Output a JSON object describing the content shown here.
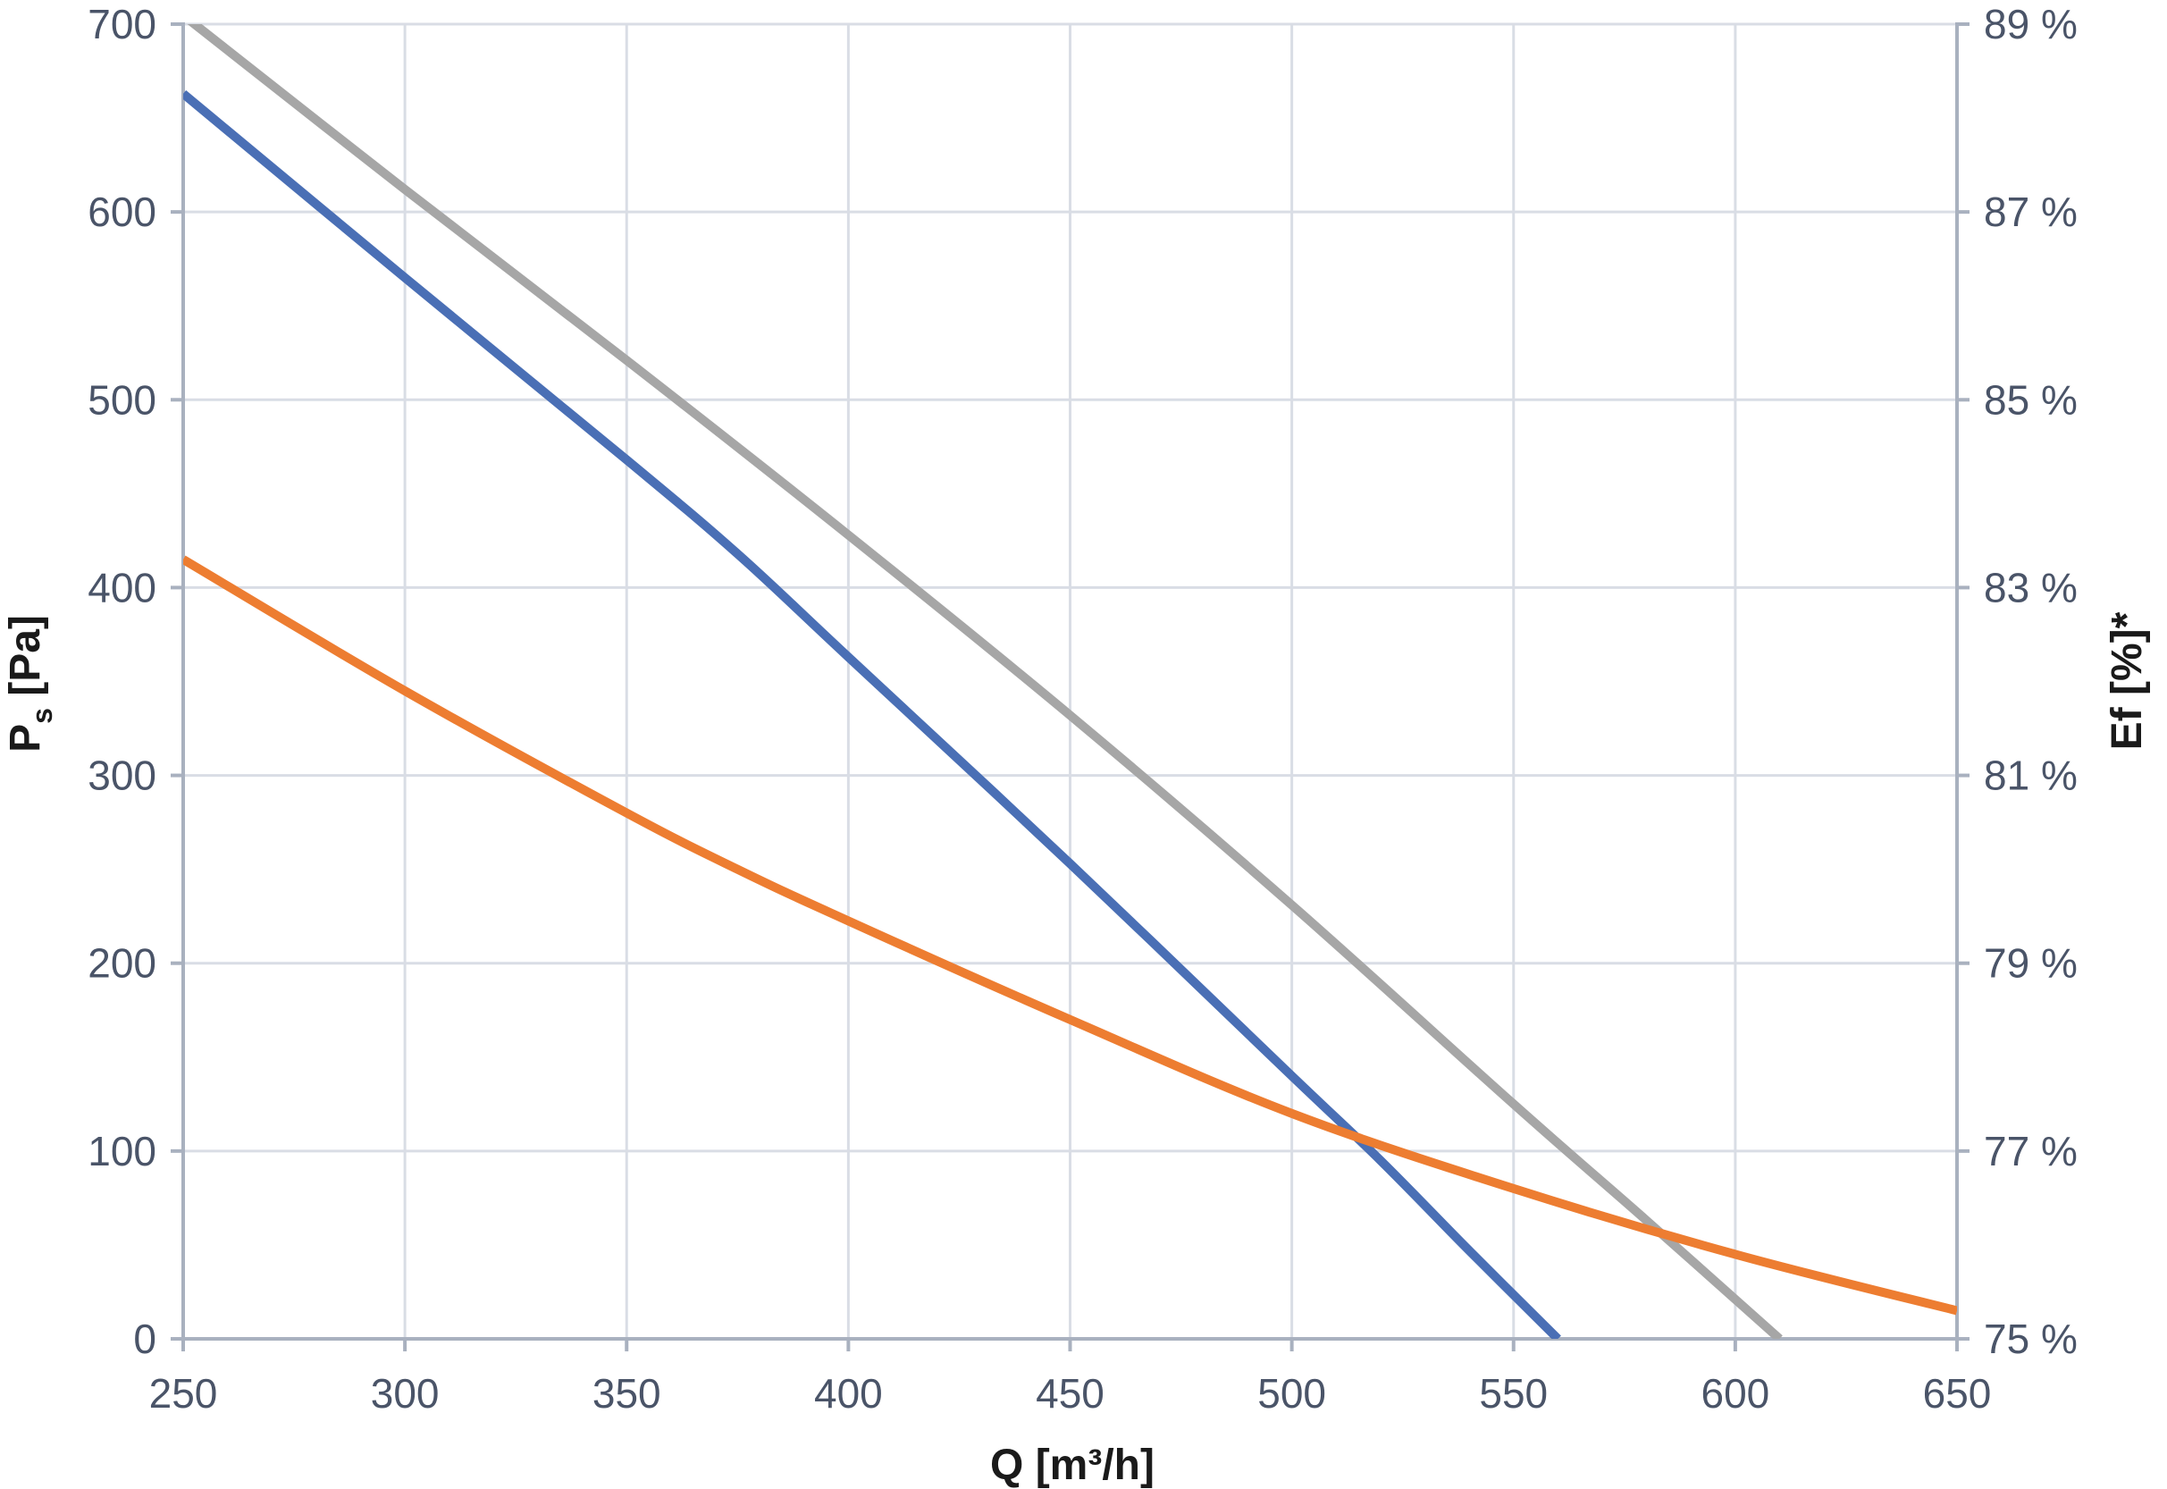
{
  "chart_data": {
    "type": "line",
    "title": "",
    "xlabel": "Q [m³/h]",
    "ylabel_main": "P",
    "ylabel_sub": "s",
    "ylabel_unit": " [Pa]",
    "y2label": "Ef [%]*",
    "xlim": [
      250,
      650
    ],
    "ylim": [
      0,
      700
    ],
    "y2lim": [
      75,
      89
    ],
    "grid": true,
    "legend": "none",
    "x_ticks": [
      "250",
      "300",
      "350",
      "400",
      "450",
      "500",
      "550",
      "600",
      "650"
    ],
    "y_ticks": [
      "0",
      "100",
      "200",
      "300",
      "400",
      "500",
      "600",
      "700"
    ],
    "y2_ticks": [
      "75 %",
      "77 %",
      "79 %",
      "81 %",
      "83 %",
      "85 %",
      "87 %",
      "89 %"
    ],
    "series": [
      {
        "axis": "left",
        "color": "#4a6fb5",
        "x": [
          250,
          300,
          350,
          375,
          400,
          450,
          500,
          520,
          540,
          560
        ],
        "y": [
          663,
          565,
          468,
          418,
          363,
          253,
          140,
          95,
          47,
          0
        ]
      },
      {
        "axis": "left",
        "color": "#a6a6a6",
        "x": [
          250,
          300,
          350,
          400,
          450,
          500,
          550,
          580,
          610
        ],
        "y": [
          705,
          612,
          521,
          428,
          332,
          231,
          125,
          63,
          0
        ]
      },
      {
        "axis": "right",
        "color": "#ed7d31",
        "x": [
          250,
          300,
          350,
          375,
          400,
          450,
          500,
          550,
          600,
          650
        ],
        "y": [
          83.3,
          81.9,
          80.6,
          80.0,
          79.45,
          78.4,
          77.4,
          76.6,
          75.9,
          75.3
        ]
      }
    ]
  }
}
